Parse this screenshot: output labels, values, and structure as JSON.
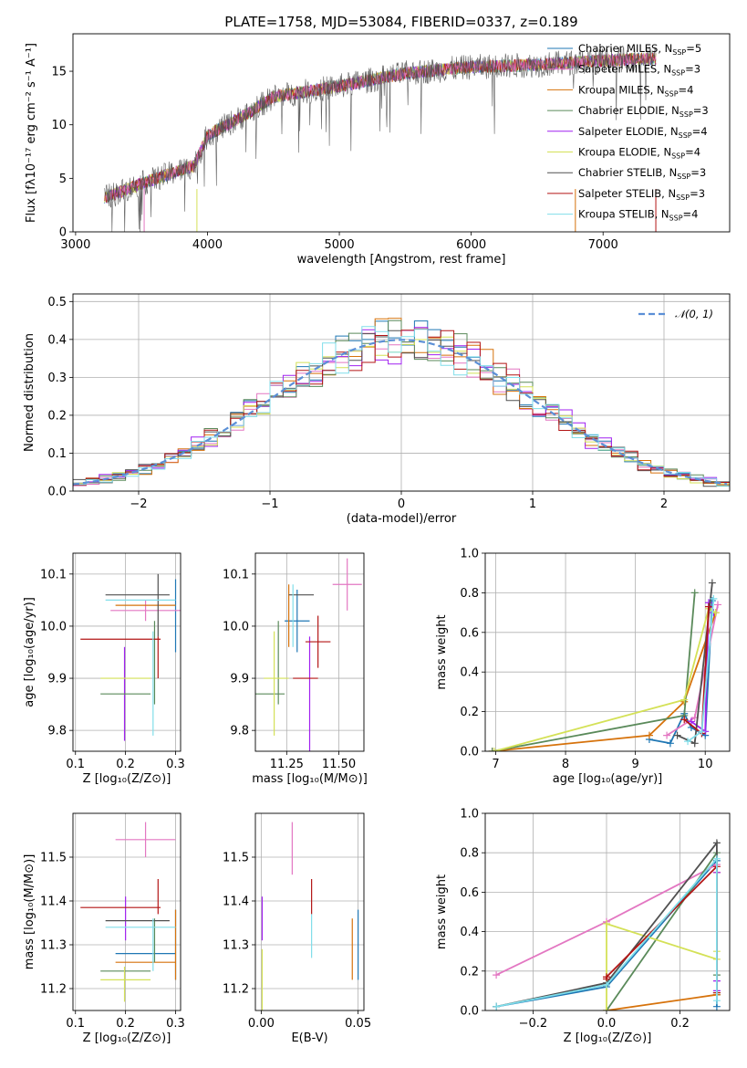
{
  "title": "PLATE=1758, MJD=53084, FIBERID=0337, z=0.189",
  "colors": [
    "#1f77b4",
    "#e377c2",
    "#d6720b",
    "#5a8a5a",
    "#a020f0",
    "#d4e157",
    "#505050",
    "#b31515",
    "#80deea"
  ],
  "legend": [
    {
      "label": "Chabrier MILES, N",
      "sub": "SSP",
      "tail": "=5",
      "color": "#1f77b4"
    },
    {
      "label": "Salpeter MILES, N",
      "sub": "SSP",
      "tail": "=3",
      "color": "#e377c2"
    },
    {
      "label": "Kroupa MILES, N",
      "sub": "SSP",
      "tail": "=4",
      "color": "#d6720b"
    },
    {
      "label": "Chabrier ELODIE, N",
      "sub": "SSP",
      "tail": "=3",
      "color": "#5a8a5a"
    },
    {
      "label": "Salpeter ELODIE, N",
      "sub": "SSP",
      "tail": "=4",
      "color": "#a020f0"
    },
    {
      "label": "Kroupa ELODIE, N",
      "sub": "SSP",
      "tail": "=4",
      "color": "#d4e157"
    },
    {
      "label": "Chabrier STELIB, N",
      "sub": "SSP",
      "tail": "=3",
      "color": "#505050"
    },
    {
      "label": "Salpeter STELIB, N",
      "sub": "SSP",
      "tail": "=3",
      "color": "#b31515"
    },
    {
      "label": "Kroupa STELIB, N",
      "sub": "SSP",
      "tail": "=4",
      "color": "#80deea"
    }
  ],
  "chart_data": [
    {
      "id": "spectrum",
      "type": "line",
      "xlabel": "wavelength [Angstrom, rest frame]",
      "ylabel": "Flux [fλ10⁻¹⁷ erg cm⁻² s⁻¹ A⁻¹]",
      "xlim": [
        2980,
        7960
      ],
      "ylim": [
        0,
        18.5
      ],
      "xticks": [
        3000,
        4000,
        5000,
        6000,
        7000
      ],
      "yticks": [
        0,
        5,
        10,
        15
      ],
      "grid": false,
      "x": [
        3220,
        3500,
        3900,
        4000,
        4300,
        4500,
        5000,
        5500,
        6000,
        6500,
        7000,
        7400
      ],
      "y": [
        3.2,
        4.5,
        6.2,
        9.0,
        11.0,
        12.6,
        13.6,
        14.8,
        15.4,
        15.6,
        16.0,
        16.2
      ]
    },
    {
      "id": "residuals",
      "type": "histogram",
      "xlabel": "(data-model)/error",
      "ylabel": "Normed distribution",
      "xlim": [
        -2.5,
        2.5
      ],
      "ylim": [
        0,
        0.52
      ],
      "xticks": [
        -2,
        -1,
        0,
        1,
        2
      ],
      "yticks": [
        0.0,
        0.1,
        0.2,
        0.3,
        0.4,
        0.5
      ],
      "grid": true,
      "series": [
        {
          "name": "𝒩(0, 1)",
          "type": "normal-pdf",
          "mean": 0,
          "sigma": 1,
          "style": "dashed"
        }
      ]
    },
    {
      "id": "age_vs_Z",
      "type": "errorbar",
      "xlabel": "Z [log₁₀(Z/Z⊙)]",
      "ylabel": "age  [log₁₀(age/yr)]",
      "xlim": [
        0.095,
        0.31
      ],
      "ylim": [
        9.76,
        10.14
      ],
      "xticks": [
        0.1,
        0.2,
        0.3
      ],
      "yticks": [
        9.8,
        9.9,
        10.0,
        10.1
      ],
      "grid": true,
      "points": [
        {
          "x": 0.3,
          "xerr": 0.0,
          "y": 10.02,
          "yerr": 0.07,
          "c": 0
        },
        {
          "x": 0.24,
          "xerr": 0.07,
          "y": 10.03,
          "yerr": 0.02,
          "c": 1
        },
        {
          "x": 0.24,
          "xerr": 0.06,
          "y": 10.04,
          "yerr": 0.0,
          "c": 2
        },
        {
          "x": 0.258,
          "xerr": 0.0,
          "y": 9.93,
          "yerr": 0.08,
          "c": 3
        },
        {
          "x": 0.198,
          "xerr": 0.0,
          "y": 9.87,
          "yerr": 0.09,
          "c": 4
        },
        {
          "x": 0.2,
          "xerr": 0.05,
          "y": 9.9,
          "yerr": 0.0,
          "c": 5
        },
        {
          "x": 0.224,
          "xerr": 0.064,
          "y": 10.06,
          "yerr": 0.0,
          "c": 6
        },
        {
          "x": 0.265,
          "xerr": 0.0,
          "y": 10.04,
          "yerr": 0.06,
          "c": 6
        },
        {
          "x": 0.19,
          "xerr": 0.08,
          "y": 9.975,
          "yerr": 0.0,
          "c": 7
        },
        {
          "x": 0.265,
          "xerr": 0.0,
          "y": 9.94,
          "yerr": 0.04,
          "c": 7
        },
        {
          "x": 0.23,
          "xerr": 0.07,
          "y": 10.05,
          "yerr": 0.0,
          "c": 8
        },
        {
          "x": 0.255,
          "xerr": 0.0,
          "y": 9.89,
          "yerr": 0.1,
          "c": 8
        },
        {
          "x": 0.2,
          "xerr": 0.05,
          "y": 9.87,
          "yerr": 0.0,
          "c": 3
        }
      ]
    },
    {
      "id": "age_vs_mass",
      "type": "errorbar",
      "xlabel": "mass [log₁₀(M/M⊙)]",
      "ylabel": "",
      "xlim": [
        11.1,
        11.62
      ],
      "ylim": [
        9.76,
        10.14
      ],
      "xticks": [
        11.25,
        11.5
      ],
      "yticks": [
        9.8,
        9.9,
        10.0,
        10.1
      ],
      "grid": true,
      "points": [
        {
          "x": 11.54,
          "xerr": 0.07,
          "y": 10.08,
          "yerr": 0.05,
          "c": 1
        },
        {
          "x": 11.3,
          "xerr": 0.06,
          "y": 10.01,
          "yerr": 0.06,
          "c": 0
        },
        {
          "x": 11.26,
          "xerr": 0.0,
          "y": 10.02,
          "yerr": 0.06,
          "c": 2
        },
        {
          "x": 11.21,
          "xerr": 0.0,
          "y": 9.93,
          "yerr": 0.08,
          "c": 3
        },
        {
          "x": 11.17,
          "xerr": 0.07,
          "y": 9.87,
          "yerr": 0.0,
          "c": 3
        },
        {
          "x": 11.36,
          "xerr": 0.0,
          "y": 9.87,
          "yerr": 0.11,
          "c": 4
        },
        {
          "x": 11.2,
          "xerr": 0.06,
          "y": 9.9,
          "yerr": 0.0,
          "c": 5
        },
        {
          "x": 11.19,
          "xerr": 0.0,
          "y": 9.89,
          "yerr": 0.1,
          "c": 5
        },
        {
          "x": 11.32,
          "xerr": 0.06,
          "y": 10.06,
          "yerr": 0.0,
          "c": 6
        },
        {
          "x": 11.34,
          "xerr": 0.06,
          "y": 9.9,
          "yerr": 0.0,
          "c": 7
        },
        {
          "x": 11.4,
          "xerr": 0.06,
          "y": 9.97,
          "yerr": 0.0,
          "c": 7
        },
        {
          "x": 11.4,
          "xerr": 0.0,
          "y": 9.97,
          "yerr": 0.05,
          "c": 7
        },
        {
          "x": 11.28,
          "xerr": 0.0,
          "y": 10.02,
          "yerr": 0.06,
          "c": 8
        }
      ]
    },
    {
      "id": "weight_vs_age",
      "type": "line",
      "xlabel": "age  [log₁₀(age/yr)]",
      "ylabel": "mass weight",
      "xlim": [
        6.85,
        10.35
      ],
      "ylim": [
        0,
        1.0
      ],
      "xticks": [
        7,
        8,
        9,
        10
      ],
      "yticks": [
        0.0,
        0.2,
        0.4,
        0.6,
        0.8,
        1.0
      ],
      "grid": true,
      "series": [
        {
          "c": 0,
          "x": [
            9.2,
            9.5,
            9.7,
            9.8,
            10.0,
            10.1
          ],
          "y": [
            0.06,
            0.04,
            0.19,
            0.12,
            0.08,
            0.76
          ]
        },
        {
          "c": 1,
          "x": [
            9.45,
            9.85,
            10.18
          ],
          "y": [
            0.08,
            0.17,
            0.74
          ]
        },
        {
          "c": 2,
          "x": [
            6.95,
            9.2,
            9.7,
            10.15
          ],
          "y": [
            0.0,
            0.08,
            0.25,
            0.7
          ]
        },
        {
          "c": 3,
          "x": [
            6.95,
            9.7,
            9.85
          ],
          "y": [
            0.0,
            0.18,
            0.8
          ]
        },
        {
          "c": 4,
          "x": [
            9.8,
            10.0,
            10.05,
            10.12
          ],
          "y": [
            0.15,
            0.1,
            0.75,
            0.7
          ]
        },
        {
          "c": 5,
          "x": [
            6.98,
            9.7,
            10.05,
            10.15
          ],
          "y": [
            0.0,
            0.26,
            0.72,
            0.7
          ]
        },
        {
          "c": 6,
          "x": [
            9.6,
            9.85,
            10.1
          ],
          "y": [
            0.08,
            0.04,
            0.85
          ]
        },
        {
          "c": 7,
          "x": [
            9.7,
            9.95,
            10.05
          ],
          "y": [
            0.16,
            0.09,
            0.73
          ]
        },
        {
          "c": 8,
          "x": [
            9.75,
            9.95,
            10.12
          ],
          "y": [
            0.05,
            0.1,
            0.77
          ]
        }
      ]
    },
    {
      "id": "mass_vs_Z",
      "type": "errorbar",
      "xlabel": "Z [log₁₀(Z/Z⊙)]",
      "ylabel": "mass [log₁₀(M/M⊙)]",
      "xlim": [
        0.095,
        0.31
      ],
      "ylim": [
        11.15,
        11.6
      ],
      "xticks": [
        0.1,
        0.2,
        0.3
      ],
      "yticks": [
        11.2,
        11.3,
        11.4,
        11.5
      ],
      "grid": true,
      "points": [
        {
          "x": 0.24,
          "xerr": 0.06,
          "y": 11.54,
          "yerr": 0.04,
          "c": 1
        },
        {
          "x": 0.3,
          "xerr": 0.0,
          "y": 11.3,
          "yerr": 0.08,
          "c": 0
        },
        {
          "x": 0.24,
          "xerr": 0.06,
          "y": 11.28,
          "yerr": 0.0,
          "c": 0
        },
        {
          "x": 0.24,
          "xerr": 0.06,
          "y": 11.26,
          "yerr": 0.0,
          "c": 2
        },
        {
          "x": 0.3,
          "xerr": 0.0,
          "y": 11.3,
          "yerr": 0.08,
          "c": 2
        },
        {
          "x": 0.258,
          "xerr": 0.0,
          "y": 11.31,
          "yerr": 0.05,
          "c": 3
        },
        {
          "x": 0.2,
          "xerr": 0.05,
          "y": 11.24,
          "yerr": 0.0,
          "c": 3
        },
        {
          "x": 0.2,
          "xerr": 0.0,
          "y": 11.36,
          "yerr": 0.05,
          "c": 4
        },
        {
          "x": 0.2,
          "xerr": 0.05,
          "y": 11.22,
          "yerr": 0.0,
          "c": 5
        },
        {
          "x": 0.198,
          "xerr": 0.0,
          "y": 11.21,
          "yerr": 0.04,
          "c": 5
        },
        {
          "x": 0.224,
          "xerr": 0.064,
          "y": 11.355,
          "yerr": 0.0,
          "c": 6
        },
        {
          "x": 0.265,
          "xerr": 0.0,
          "y": 11.41,
          "yerr": 0.04,
          "c": 7
        },
        {
          "x": 0.19,
          "xerr": 0.08,
          "y": 11.385,
          "yerr": 0.0,
          "c": 7
        },
        {
          "x": 0.23,
          "xerr": 0.07,
          "y": 11.34,
          "yerr": 0.0,
          "c": 8
        },
        {
          "x": 0.255,
          "xerr": 0.0,
          "y": 11.3,
          "yerr": 0.06,
          "c": 8
        }
      ]
    },
    {
      "id": "mass_vs_ebv",
      "type": "errorbar",
      "xlabel": "E(B-V)",
      "ylabel": "",
      "xlim": [
        -0.003,
        0.053
      ],
      "ylim": [
        11.15,
        11.6
      ],
      "xticks": [
        0.0,
        0.05
      ],
      "yticks": [
        11.2,
        11.3,
        11.4,
        11.5
      ],
      "grid": true,
      "points": [
        {
          "x": 0.016,
          "xerr": 0.0,
          "y": 11.52,
          "yerr": 0.06,
          "c": 1
        },
        {
          "x": 0.0005,
          "xerr": 0.0,
          "y": 11.36,
          "yerr": 0.05,
          "c": 4
        },
        {
          "x": 0.0005,
          "xerr": 0.0,
          "y": 11.22,
          "yerr": 0.07,
          "c": 5
        },
        {
          "x": 0.026,
          "xerr": 0.0,
          "y": 11.41,
          "yerr": 0.04,
          "c": 7
        },
        {
          "x": 0.026,
          "xerr": 0.0,
          "y": 11.32,
          "yerr": 0.05,
          "c": 8
        },
        {
          "x": 0.047,
          "xerr": 0.0,
          "y": 11.29,
          "yerr": 0.07,
          "c": 2
        },
        {
          "x": 0.05,
          "xerr": 0.0,
          "y": 11.3,
          "yerr": 0.08,
          "c": 0
        }
      ]
    },
    {
      "id": "weight_vs_Z",
      "type": "line",
      "xlabel": "Z [log₁₀(Z/Z⊙)]",
      "ylabel": "mass weight",
      "xlim": [
        -0.33,
        0.335
      ],
      "ylim": [
        0,
        1.0
      ],
      "xticks": [
        -0.2,
        0.0,
        0.2
      ],
      "yticks": [
        0.0,
        0.2,
        0.4,
        0.6,
        0.8,
        1.0
      ],
      "grid": true,
      "series": [
        {
          "c": 0,
          "x": [
            -0.3,
            0.0,
            0.3,
            0.3,
            0.3
          ],
          "y": [
            0.02,
            0.12,
            0.76,
            0.02,
            0.08
          ]
        },
        {
          "c": 1,
          "x": [
            -0.3,
            0.0,
            0.3
          ],
          "y": [
            0.18,
            0.45,
            0.74
          ]
        },
        {
          "c": 2,
          "x": [
            0.0,
            0.3,
            0.3
          ],
          "y": [
            0.0,
            0.08,
            0.7
          ]
        },
        {
          "c": 3,
          "x": [
            0.0,
            0.3,
            0.3
          ],
          "y": [
            0.0,
            0.8,
            0.18
          ]
        },
        {
          "c": 4,
          "x": [
            0.3,
            0.3,
            0.3
          ],
          "y": [
            0.1,
            0.7,
            0.15
          ]
        },
        {
          "c": 5,
          "x": [
            0.0,
            0.0,
            0.3,
            0.3
          ],
          "y": [
            0.0,
            0.44,
            0.26,
            0.3
          ]
        },
        {
          "c": 6,
          "x": [
            -0.3,
            0.0,
            0.3,
            0.3
          ],
          "y": [
            0.02,
            0.14,
            0.85,
            0.09
          ]
        },
        {
          "c": 7,
          "x": [
            0.0,
            0.0,
            0.3,
            0.3
          ],
          "y": [
            0.16,
            0.17,
            0.73,
            0.09
          ]
        },
        {
          "c": 8,
          "x": [
            -0.3,
            0.0,
            0.3,
            0.3
          ],
          "y": [
            0.02,
            0.13,
            0.77,
            0.05
          ]
        }
      ]
    }
  ]
}
